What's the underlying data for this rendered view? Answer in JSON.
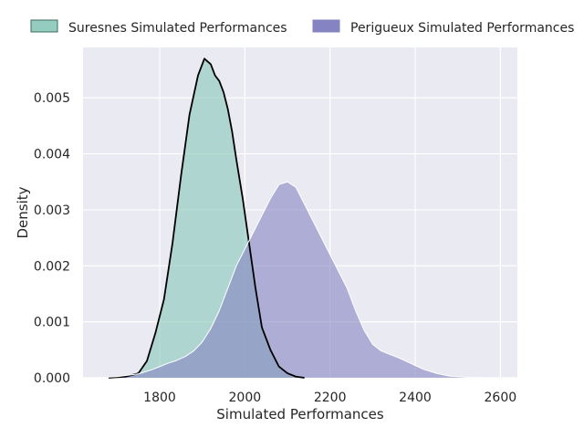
{
  "chart_data": {
    "type": "area",
    "title": "",
    "xlabel": "Simulated Performances",
    "ylabel": "Density",
    "xlim": [
      1620,
      2640
    ],
    "ylim": [
      0,
      0.0059
    ],
    "x_ticks": [
      1800,
      2000,
      2200,
      2400,
      2600
    ],
    "y_ticks": [
      0.0,
      0.001,
      0.002,
      0.003,
      0.004,
      0.005
    ],
    "x_tick_labels": [
      "1800",
      "2000",
      "2200",
      "2400",
      "2600"
    ],
    "y_tick_labels": [
      "0.000",
      "0.001",
      "0.002",
      "0.003",
      "0.004",
      "0.005"
    ],
    "grid": true,
    "legend_position": "top",
    "background_color": "#eaeaf2",
    "series": [
      {
        "name": "Suresnes Simulated Performances",
        "fill_color": "#8fc9bd",
        "line_color": "#000000",
        "x": [
          1680,
          1720,
          1750,
          1770,
          1790,
          1810,
          1830,
          1850,
          1870,
          1890,
          1905,
          1920,
          1930,
          1940,
          1950,
          1960,
          1970,
          1980,
          1995,
          2010,
          2025,
          2040,
          2060,
          2080,
          2100,
          2120,
          2140
        ],
        "y": [
          0.0,
          2e-05,
          8e-05,
          0.0003,
          0.0008,
          0.0014,
          0.0024,
          0.0036,
          0.0047,
          0.0054,
          0.0057,
          0.0056,
          0.0054,
          0.0053,
          0.0051,
          0.0048,
          0.0044,
          0.0039,
          0.0032,
          0.0024,
          0.0016,
          0.0009,
          0.0005,
          0.0002,
          8e-05,
          2e-05,
          0.0
        ]
      },
      {
        "name": "Perigueux Simulated Performances",
        "fill_color": "#8583c2",
        "line_color": "#ffffff",
        "x": [
          1650,
          1700,
          1750,
          1780,
          1800,
          1820,
          1840,
          1860,
          1880,
          1900,
          1920,
          1940,
          1960,
          1980,
          2000,
          2020,
          2040,
          2060,
          2080,
          2100,
          2120,
          2140,
          2160,
          2180,
          2200,
          2220,
          2240,
          2260,
          2280,
          2300,
          2320,
          2340,
          2360,
          2380,
          2400,
          2420,
          2450,
          2480,
          2520,
          2560,
          2600
        ],
        "y": [
          0.0,
          2e-05,
          7e-05,
          0.00014,
          0.0002,
          0.00026,
          0.00031,
          0.00038,
          0.00048,
          0.00064,
          0.00088,
          0.0012,
          0.0016,
          0.002,
          0.0023,
          0.0026,
          0.0029,
          0.0032,
          0.00345,
          0.0035,
          0.0034,
          0.0031,
          0.0028,
          0.0025,
          0.0022,
          0.0019,
          0.0016,
          0.0012,
          0.00085,
          0.0006,
          0.00048,
          0.00042,
          0.00036,
          0.00029,
          0.00022,
          0.00015,
          8e-05,
          3e-05,
          1e-05,
          0.0,
          0.0
        ]
      }
    ]
  }
}
